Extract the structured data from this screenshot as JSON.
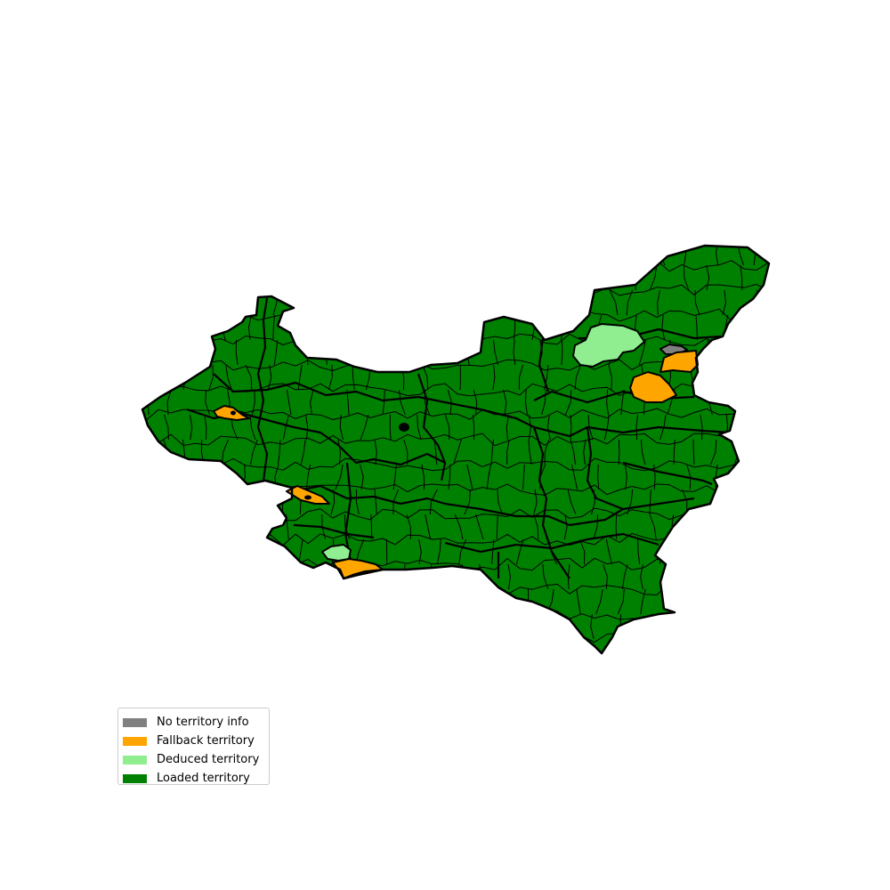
{
  "colors": {
    "no_info": "#808080",
    "fallback": "#ffa500",
    "deduced": "#90ee90",
    "loaded": "#008000",
    "border": "#000000"
  },
  "legend": {
    "items": [
      {
        "label": "No territory info",
        "color": "#808080"
      },
      {
        "label": "Fallback territory",
        "color": "#ffa500"
      },
      {
        "label": "Deduced territory",
        "color": "#90ee90"
      },
      {
        "label": "Loaded territory",
        "color": "#008000"
      }
    ]
  },
  "map": {
    "region_counts": {
      "no_info": 1,
      "fallback": 5,
      "deduced": 2
    }
  }
}
